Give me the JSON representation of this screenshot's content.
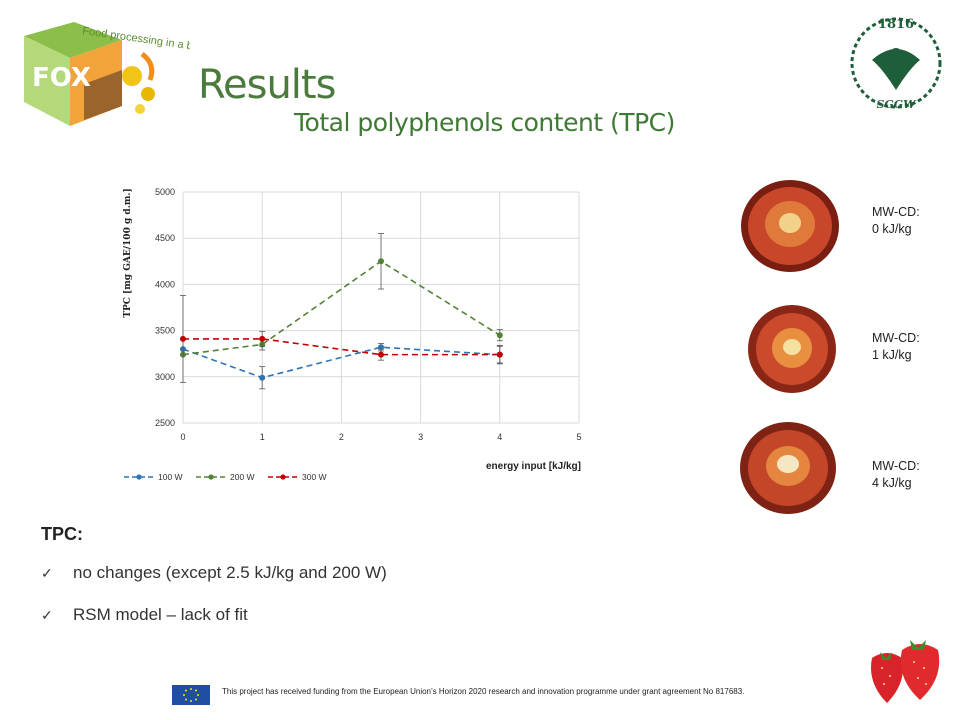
{
  "header": {
    "logo_fox_text": "Food processing in a box",
    "logo_fox_letters": "FOX",
    "logo_sggw_year": "1816",
    "logo_sggw_text": "SGGW",
    "title": "Results",
    "subtitle": "Total polyphenols content (TPC)"
  },
  "chart_data": {
    "type": "line",
    "ylabel": "TPC [mg GAE/100 g d.m.]",
    "xlabel": "energy input [kJ/kg]",
    "xlim": [
      0,
      5
    ],
    "ylim": [
      2500,
      5000
    ],
    "x_ticks": [
      "0",
      "1",
      "2",
      "3",
      "4",
      "5"
    ],
    "y_ticks": [
      "2500",
      "3000",
      "3500",
      "4000",
      "4500",
      "5000"
    ],
    "grid": true,
    "legend_position": "bottom-left",
    "series": [
      {
        "name": "100 W",
        "color": "#2e75b6",
        "x": [
          0,
          1,
          2.5,
          4
        ],
        "y": [
          3300,
          2990,
          3320,
          3240
        ],
        "err": [
          0,
          120,
          40,
          90
        ]
      },
      {
        "name": "200 W",
        "color": "#548235",
        "x": [
          0,
          1,
          2.5,
          4
        ],
        "y": [
          3240,
          3350,
          4250,
          3450
        ],
        "err": [
          0,
          60,
          300,
          60
        ]
      },
      {
        "name": "300 W",
        "color": "#c00000",
        "x": [
          0,
          1,
          2.5,
          4
        ],
        "y": [
          3410,
          3410,
          3240,
          3240
        ],
        "err": [
          470,
          80,
          60,
          100
        ]
      }
    ]
  },
  "samples": [
    {
      "label_line1": "MW-CD:",
      "label_line2": "0 kJ/kg"
    },
    {
      "label_line1": "MW-CD:",
      "label_line2": "1 kJ/kg"
    },
    {
      "label_line1": "MW-CD:",
      "label_line2": "4 kJ/kg"
    }
  ],
  "summary": {
    "heading": "TPC:",
    "bullets": [
      "no changes (except 2.5 kJ/kg and 200 W)",
      "RSM model – lack of fit"
    ]
  },
  "footer": {
    "funding_text": "This project has received funding from the European Union’s Horizon 2020 research and innovation programme under grant agreement No 817683."
  },
  "colors": {
    "title_green": "#4a7a3c",
    "eu_blue": "#1f4ea3",
    "eu_star": "#ffdd00"
  }
}
